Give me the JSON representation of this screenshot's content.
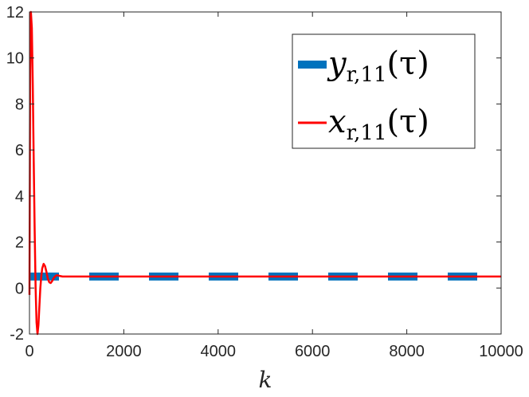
{
  "chart_data": {
    "type": "line",
    "xlabel": "k",
    "ylabel": "",
    "xlim": [
      0,
      10000
    ],
    "ylim": [
      -2,
      12
    ],
    "x_ticks": [
      0,
      2000,
      4000,
      6000,
      8000,
      10000
    ],
    "x_tick_labels": [
      "0",
      "2000",
      "4000",
      "6000",
      "8000",
      "10000"
    ],
    "y_ticks": [
      -2,
      0,
      2,
      4,
      6,
      8,
      10,
      12
    ],
    "y_tick_labels": [
      "-2",
      "0",
      "2",
      "4",
      "6",
      "8",
      "10",
      "12"
    ],
    "grid": false,
    "legend_position": "top-right",
    "series": [
      {
        "name": "y_{r,11}(τ)",
        "legend_main": "y",
        "legend_sub": "r,11",
        "legend_tail": "(τ)",
        "color": "#0072BD",
        "style": "dashed",
        "x": [
          0,
          10000
        ],
        "y": [
          0.5,
          0.5
        ]
      },
      {
        "name": "x_{r,11}(τ)",
        "legend_main": "x",
        "legend_sub": "r,11",
        "legend_tail": "(τ)",
        "color": "#FF0000",
        "style": "solid",
        "x": [
          0,
          15,
          30,
          50,
          70,
          90,
          110,
          130,
          150,
          170,
          190,
          210,
          230,
          250,
          270,
          300,
          330,
          360,
          390,
          420,
          450,
          480,
          510,
          540,
          570,
          600,
          650,
          700,
          800,
          900,
          1000,
          10000
        ],
        "y": [
          -0.3,
          9.5,
          12.0,
          11.3,
          8.8,
          5.5,
          2.5,
          0.0,
          -1.5,
          -2.0,
          -1.6,
          -0.8,
          0.0,
          0.5,
          0.85,
          1.05,
          0.95,
          0.7,
          0.4,
          0.25,
          0.22,
          0.3,
          0.42,
          0.5,
          0.55,
          0.55,
          0.52,
          0.5,
          0.5,
          0.5,
          0.5,
          0.5
        ]
      }
    ]
  }
}
